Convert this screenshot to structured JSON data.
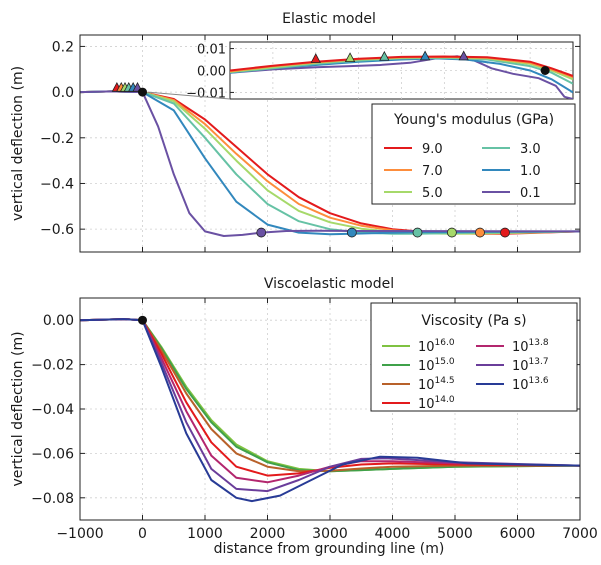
{
  "chart_data": [
    {
      "type": "line",
      "title": "Elastic model",
      "xlabel": "",
      "ylabel": "vertical deflection (m)",
      "xlim": [
        -1000,
        7000
      ],
      "ylim": [
        -0.7,
        0.25
      ],
      "x_ticks": [
        -1000,
        0,
        1000,
        2000,
        3000,
        4000,
        5000,
        6000,
        7000
      ],
      "y_ticks": [
        0.2,
        0.0,
        -0.2,
        -0.4,
        -0.6
      ],
      "y_tick_labels": [
        "0.2",
        "0.0",
        "−0.2",
        "−0.4",
        "−0.6"
      ],
      "grid": true,
      "legend": {
        "title": "Young's modulus (GPa)",
        "placement": "inside-right",
        "entries": [
          "9.0",
          "7.0",
          "5.0",
          "3.0",
          "1.0",
          "0.1"
        ]
      },
      "grounding_line": {
        "x": 0,
        "y": 0
      },
      "series": [
        {
          "name": "9.0",
          "color": "#e31a1c",
          "x": [
            -1000,
            -500,
            0,
            500,
            1000,
            1500,
            2000,
            2500,
            3000,
            3500,
            4000,
            4500,
            5000,
            5500,
            5800,
            6200,
            7000
          ],
          "y": [
            0,
            0.003,
            0,
            -0.03,
            -0.12,
            -0.24,
            -0.36,
            -0.46,
            -0.53,
            -0.575,
            -0.6,
            -0.612,
            -0.618,
            -0.62,
            -0.62,
            -0.617,
            -0.61
          ],
          "triangle": [
            -410,
            0.01
          ],
          "circle": [
            5800,
            -0.615
          ]
        },
        {
          "name": "7.0",
          "color": "#fd8d3c",
          "x": [
            -1000,
            -500,
            0,
            500,
            1000,
            1500,
            2000,
            2500,
            3000,
            3500,
            4000,
            4500,
            5000,
            5400,
            6000,
            7000
          ],
          "y": [
            0,
            0.003,
            0,
            -0.035,
            -0.14,
            -0.27,
            -0.39,
            -0.49,
            -0.55,
            -0.585,
            -0.605,
            -0.615,
            -0.619,
            -0.62,
            -0.617,
            -0.61
          ],
          "triangle": [
            -340,
            0.01
          ],
          "circle": [
            5400,
            -0.615
          ]
        },
        {
          "name": "5.0",
          "color": "#a6d96a",
          "x": [
            -1000,
            -500,
            0,
            500,
            1000,
            1500,
            2000,
            2500,
            3000,
            3500,
            4000,
            4500,
            4950,
            5500,
            7000
          ],
          "y": [
            0,
            0.003,
            0,
            -0.04,
            -0.16,
            -0.3,
            -0.43,
            -0.52,
            -0.57,
            -0.598,
            -0.612,
            -0.618,
            -0.62,
            -0.618,
            -0.61
          ],
          "triangle": [
            -280,
            0.01
          ],
          "circle": [
            4950,
            -0.615
          ]
        },
        {
          "name": "3.0",
          "color": "#66c2a5",
          "x": [
            -1000,
            -500,
            0,
            500,
            1000,
            1500,
            2000,
            2500,
            3000,
            3500,
            4000,
            4400,
            5000,
            7000
          ],
          "y": [
            0,
            0.003,
            0,
            -0.05,
            -0.2,
            -0.36,
            -0.49,
            -0.565,
            -0.6,
            -0.615,
            -0.62,
            -0.62,
            -0.617,
            -0.61
          ],
          "triangle": [
            -220,
            0.01
          ],
          "circle": [
            4400,
            -0.615
          ]
        },
        {
          "name": "1.0",
          "color": "#3288bd",
          "x": [
            -1000,
            -500,
            0,
            500,
            1000,
            1500,
            2000,
            2500,
            3000,
            3350,
            3800,
            4500,
            7000
          ],
          "y": [
            0,
            0.003,
            0,
            -0.08,
            -0.29,
            -0.48,
            -0.58,
            -0.615,
            -0.622,
            -0.62,
            -0.617,
            -0.613,
            -0.61
          ],
          "triangle": [
            -150,
            0.01
          ],
          "circle": [
            3350,
            -0.615
          ]
        },
        {
          "name": "0.1",
          "color": "#6a51a3",
          "x": [
            -1000,
            -500,
            0,
            250,
            500,
            750,
            1000,
            1300,
            1600,
            1900,
            2300,
            2800,
            3500,
            7000
          ],
          "y": [
            0,
            0.003,
            0,
            -0.15,
            -0.36,
            -0.53,
            -0.61,
            -0.63,
            -0.625,
            -0.615,
            -0.608,
            -0.607,
            -0.608,
            -0.61
          ],
          "triangle": [
            -80,
            0.01
          ],
          "circle": [
            1900,
            -0.615
          ]
        }
      ],
      "inset": {
        "xlim": [
          -1000,
          7000
        ],
        "ylim": [
          -0.013,
          0.013
        ],
        "y_ticks": [
          0.01,
          0.0,
          -0.01
        ],
        "y_tick_labels": [
          "0.01",
          "0.00",
          "−0.01"
        ],
        "curves": [
          {
            "color": "#6a51a3",
            "x": [
              -1000,
              0,
              1000,
              1800,
              2500,
              3200,
              3800,
              4300,
              4700,
              5100,
              5600,
              6200,
              6600,
              6800,
              7000
            ],
            "y": [
              -0.001,
              0.0005,
              0.0015,
              0.002,
              0.0025,
              0.0035,
              0.0055,
              0.0065,
              0.0045,
              0.001,
              -0.0015,
              -0.0035,
              -0.007,
              -0.012,
              -0.013
            ]
          },
          {
            "color": "#3288bd",
            "x": [
              -1000,
              0,
              1000,
              2000,
              3000,
              3800,
              4500,
              5300,
              6000,
              6500,
              7000
            ],
            "y": [
              -0.001,
              0.001,
              0.0025,
              0.004,
              0.005,
              0.0055,
              0.005,
              0.003,
              0,
              -0.004,
              -0.01
            ]
          },
          {
            "color": "#66c2a5",
            "x": [
              -1000,
              0,
              1000,
              2000,
              3000,
              4000,
              5000,
              6000,
              6500,
              7000
            ],
            "y": [
              -0.0008,
              0.001,
              0.003,
              0.0045,
              0.0055,
              0.0058,
              0.005,
              0.002,
              -0.001,
              -0.006
            ]
          },
          {
            "color": "#a6d96a",
            "x": [
              -1000,
              0,
              1000,
              2000,
              3000,
              4000,
              5000,
              6000,
              6500,
              7000
            ],
            "y": [
              -0.0006,
              0.0015,
              0.0035,
              0.005,
              0.0058,
              0.006,
              0.0055,
              0.003,
              0,
              -0.004
            ]
          },
          {
            "color": "#fd8d3c",
            "x": [
              -1000,
              0,
              1000,
              2000,
              3000,
              4000,
              5000,
              6000,
              6500,
              7000
            ],
            "y": [
              -0.0004,
              0.002,
              0.0038,
              0.0052,
              0.006,
              0.0062,
              0.0058,
              0.0035,
              0.0005,
              -0.003
            ]
          },
          {
            "color": "#e31a1c",
            "x": [
              -1000,
              0,
              1000,
              2000,
              3000,
              4000,
              5000,
              6000,
              6500,
              7000
            ],
            "y": [
              0,
              0.0022,
              0.004,
              0.0054,
              0.0062,
              0.0064,
              0.006,
              0.004,
              0.001,
              -0.0025
            ]
          }
        ],
        "triangles": [
          {
            "x": 1000,
            "y": 0.0048,
            "color": "#e31a1c"
          },
          {
            "x": 1800,
            "y": 0.0052,
            "color": "#a6d96a"
          },
          {
            "x": 2600,
            "y": 0.0058,
            "color": "#66c2a5"
          },
          {
            "x": 3550,
            "y": 0.006,
            "color": "#3288bd"
          },
          {
            "x": 4450,
            "y": 0.006,
            "color": "#6a51a3"
          }
        ],
        "circle": {
          "x": 6350,
          "y": 0.0
        }
      }
    },
    {
      "type": "line",
      "title": "Viscoelastic model",
      "xlabel": "distance from grounding line (m)",
      "ylabel": "vertical deflection (m)",
      "xlim": [
        -1000,
        7000
      ],
      "ylim": [
        -0.09,
        0.01
      ],
      "x_ticks": [
        -1000,
        0,
        1000,
        2000,
        3000,
        4000,
        5000,
        6000,
        7000
      ],
      "x_tick_labels": [
        "−1000",
        "0",
        "1000",
        "2000",
        "3000",
        "4000",
        "5000",
        "6000",
        "7000"
      ],
      "y_ticks": [
        0.0,
        -0.02,
        -0.04,
        -0.06,
        -0.08
      ],
      "y_tick_labels": [
        "0.00",
        "−0.02",
        "−0.04",
        "−0.06",
        "−0.08"
      ],
      "grid": true,
      "legend": {
        "title": "Viscosity (Pa s)",
        "placement": "top-right",
        "entries_left": [
          {
            "base": "10",
            "exp": "16.0",
            "color": "#7fc241"
          },
          {
            "base": "10",
            "exp": "15.0",
            "color": "#3fa14a"
          },
          {
            "base": "10",
            "exp": "14.5",
            "color": "#b8612a"
          },
          {
            "base": "10",
            "exp": "14.0",
            "color": "#e31a1c"
          }
        ],
        "entries_right": [
          {
            "base": "10",
            "exp": "13.8",
            "color": "#b3266e"
          },
          {
            "base": "10",
            "exp": "13.7",
            "color": "#6a3d9a"
          },
          {
            "base": "10",
            "exp": "13.6",
            "color": "#283b96"
          }
        ]
      },
      "grounding_line": {
        "x": 0,
        "y": 0
      },
      "series": [
        {
          "name": "10^16.0",
          "color": "#7fc241",
          "x": [
            -1000,
            -300,
            0,
            300,
            700,
            1100,
            1500,
            2000,
            2500,
            3000,
            3500,
            4000,
            5000,
            7000
          ],
          "y": [
            0,
            0.0005,
            0,
            -0.012,
            -0.03,
            -0.045,
            -0.056,
            -0.0635,
            -0.067,
            -0.068,
            -0.0675,
            -0.067,
            -0.066,
            -0.0655
          ]
        },
        {
          "name": "10^15.0",
          "color": "#3fa14a",
          "x": [
            -1000,
            -300,
            0,
            300,
            700,
            1100,
            1500,
            2000,
            2500,
            3000,
            3500,
            4000,
            5000,
            7000
          ],
          "y": [
            0,
            0.0005,
            0,
            -0.0125,
            -0.031,
            -0.046,
            -0.057,
            -0.064,
            -0.0675,
            -0.068,
            -0.0675,
            -0.067,
            -0.066,
            -0.0655
          ]
        },
        {
          "name": "10^14.5",
          "color": "#b8612a",
          "x": [
            -1000,
            -300,
            0,
            300,
            700,
            1100,
            1500,
            2000,
            2500,
            3000,
            3500,
            4000,
            5000,
            7000
          ],
          "y": [
            0,
            0.0005,
            0,
            -0.0135,
            -0.033,
            -0.049,
            -0.06,
            -0.066,
            -0.068,
            -0.0678,
            -0.0668,
            -0.066,
            -0.0655,
            -0.0655
          ]
        },
        {
          "name": "10^14.0",
          "color": "#e31a1c",
          "x": [
            -1000,
            -300,
            0,
            300,
            700,
            1100,
            1500,
            2000,
            2500,
            3000,
            3500,
            4000,
            5000,
            7000
          ],
          "y": [
            0,
            0.0005,
            0,
            -0.015,
            -0.037,
            -0.055,
            -0.066,
            -0.07,
            -0.069,
            -0.0665,
            -0.065,
            -0.0645,
            -0.065,
            -0.0655
          ]
        },
        {
          "name": "10^13.8",
          "color": "#b3266e",
          "x": [
            -1000,
            -300,
            0,
            300,
            700,
            1100,
            1500,
            2000,
            2500,
            3000,
            3500,
            4000,
            5000,
            7000
          ],
          "y": [
            0,
            0.0005,
            0,
            -0.017,
            -0.041,
            -0.061,
            -0.071,
            -0.073,
            -0.07,
            -0.066,
            -0.0635,
            -0.0635,
            -0.0645,
            -0.0655
          ]
        },
        {
          "name": "10^13.7",
          "color": "#6a3d9a",
          "x": [
            -1000,
            -300,
            0,
            300,
            700,
            1100,
            1500,
            2000,
            2500,
            3000,
            3500,
            3900,
            5000,
            7000
          ],
          "y": [
            0,
            0.0005,
            0,
            -0.019,
            -0.046,
            -0.067,
            -0.076,
            -0.077,
            -0.072,
            -0.066,
            -0.0625,
            -0.0622,
            -0.064,
            -0.0655
          ]
        },
        {
          "name": "10^13.6",
          "color": "#283b96",
          "x": [
            -1000,
            -300,
            0,
            300,
            700,
            1100,
            1500,
            1750,
            2200,
            2700,
            3200,
            3800,
            4400,
            5200,
            7000
          ],
          "y": [
            0,
            0.0005,
            0,
            -0.021,
            -0.051,
            -0.072,
            -0.08,
            -0.0815,
            -0.079,
            -0.072,
            -0.065,
            -0.0615,
            -0.062,
            -0.0645,
            -0.0655
          ]
        }
      ]
    }
  ]
}
